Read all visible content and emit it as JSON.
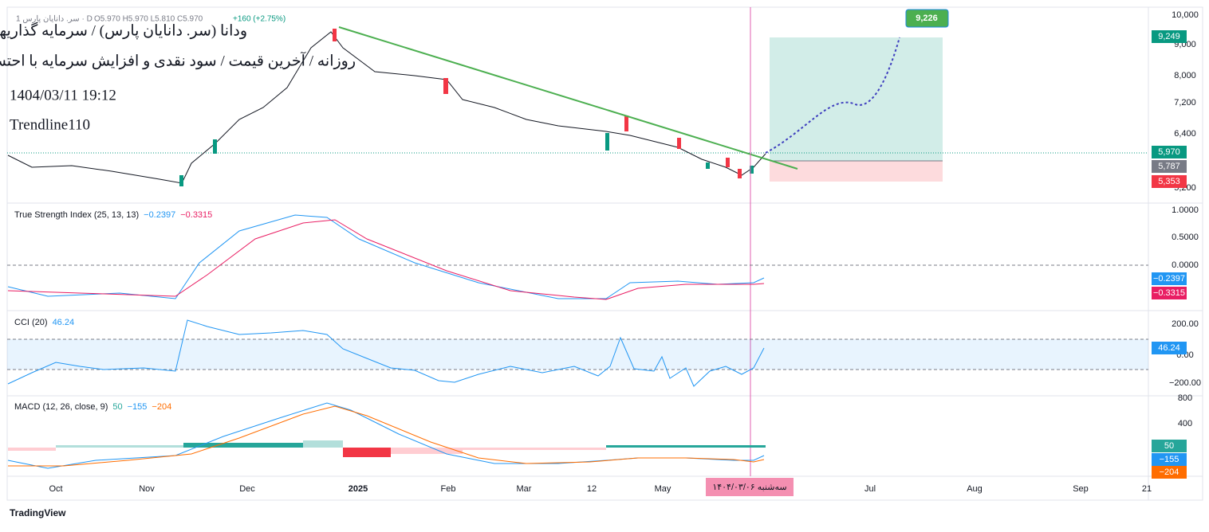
{
  "header": {
    "symbol": "سر. دانایان پارس 1 · D",
    "ohlc": "O5.970 H5.970 L5.810 C5.970",
    "change": "+160 (+2.75%)"
  },
  "overlay": [
    "ودانا (سر. دانایان پارس) / سرمایه گذاریها",
    "روزانه / آخرین قیمت / سود نقدی و افزایش سرمایه با احتساب آورده",
    "1404/03/11 19:12",
    "Trendline110"
  ],
  "target": "9,226",
  "price_axis": {
    "ticks": [
      "10,000",
      "9,000",
      "8,000",
      "7,200",
      "6,400",
      "5,200"
    ],
    "badges": [
      "9,249",
      "5,970",
      "5,787",
      "5,353"
    ]
  },
  "tsi": {
    "title": "True Strength Index (25, 13, 13)",
    "values": [
      "−0.2397",
      "−0.3315"
    ],
    "ticks": [
      "1.0000",
      "0.5000",
      "0.0000"
    ]
  },
  "cci": {
    "title": "CCI (20)",
    "values": [
      "46.24"
    ],
    "ticks": [
      "200.00",
      "0.00",
      "−200.00"
    ]
  },
  "macd": {
    "title": "MACD (12, 26, close, 9)",
    "values": [
      "50",
      "−155",
      "−204"
    ],
    "ticks": [
      "800",
      "400"
    ]
  },
  "time_axis": {
    "labels": [
      "Oct",
      "Nov",
      "Dec",
      "2025",
      "Feb",
      "Mar",
      "12",
      "May",
      "Jul",
      "Aug",
      "Sep",
      "21"
    ],
    "cursor": "سه‌شنبه ۱۴۰۴/۰۳/۰۶"
  },
  "footer": "TradingView"
}
